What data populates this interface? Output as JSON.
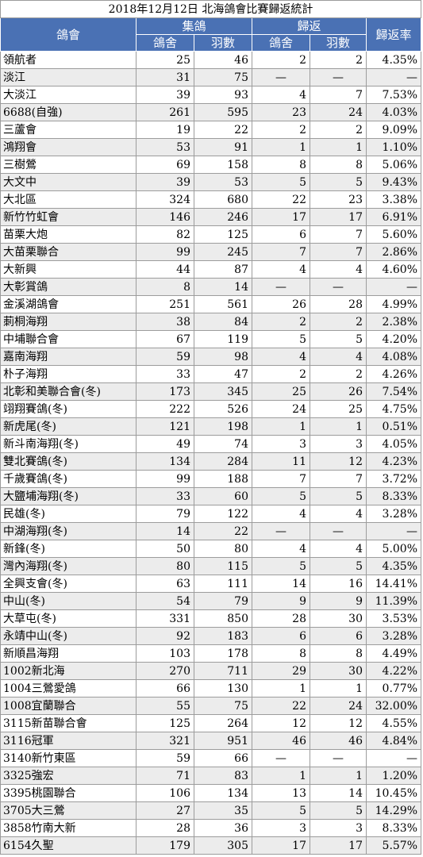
{
  "title": "2018年12月12日 北海鴿會比賽歸返統計",
  "headers": {
    "club": "鴿會",
    "collected": "集鴿",
    "returned": "歸返",
    "rate": "歸返率",
    "lofts": "鴿舍",
    "birds": "羽數"
  },
  "rows": [
    {
      "club": "領航者",
      "c_lofts": "25",
      "c_birds": "46",
      "r_lofts": "2",
      "r_birds": "2",
      "rate": "4.35%"
    },
    {
      "club": "淡江",
      "c_lofts": "31",
      "c_birds": "75",
      "r_lofts": "—",
      "r_birds": "—",
      "rate": "—"
    },
    {
      "club": "大淡江",
      "c_lofts": "39",
      "c_birds": "93",
      "r_lofts": "4",
      "r_birds": "7",
      "rate": "7.53%"
    },
    {
      "club": "6688(自強)",
      "c_lofts": "261",
      "c_birds": "595",
      "r_lofts": "23",
      "r_birds": "24",
      "rate": "4.03%"
    },
    {
      "club": "三蘆會",
      "c_lofts": "19",
      "c_birds": "22",
      "r_lofts": "2",
      "r_birds": "2",
      "rate": "9.09%"
    },
    {
      "club": "鴻翔會",
      "c_lofts": "53",
      "c_birds": "91",
      "r_lofts": "1",
      "r_birds": "1",
      "rate": "1.10%"
    },
    {
      "club": "三樹鶯",
      "c_lofts": "69",
      "c_birds": "158",
      "r_lofts": "8",
      "r_birds": "8",
      "rate": "5.06%"
    },
    {
      "club": "大文中",
      "c_lofts": "39",
      "c_birds": "53",
      "r_lofts": "5",
      "r_birds": "5",
      "rate": "9.43%"
    },
    {
      "club": "大北區",
      "c_lofts": "324",
      "c_birds": "680",
      "r_lofts": "22",
      "r_birds": "23",
      "rate": "3.38%"
    },
    {
      "club": "新竹竹虹會",
      "c_lofts": "146",
      "c_birds": "246",
      "r_lofts": "17",
      "r_birds": "17",
      "rate": "6.91%"
    },
    {
      "club": "苗栗大炮",
      "c_lofts": "82",
      "c_birds": "125",
      "r_lofts": "6",
      "r_birds": "7",
      "rate": "5.60%"
    },
    {
      "club": "大苗栗聯合",
      "c_lofts": "99",
      "c_birds": "245",
      "r_lofts": "7",
      "r_birds": "7",
      "rate": "2.86%"
    },
    {
      "club": "大新興",
      "c_lofts": "44",
      "c_birds": "87",
      "r_lofts": "4",
      "r_birds": "4",
      "rate": "4.60%"
    },
    {
      "club": "大彰賞鴿",
      "c_lofts": "8",
      "c_birds": "14",
      "r_lofts": "—",
      "r_birds": "—",
      "rate": "—"
    },
    {
      "club": "金溪湖鴿會",
      "c_lofts": "251",
      "c_birds": "561",
      "r_lofts": "26",
      "r_birds": "28",
      "rate": "4.99%"
    },
    {
      "club": "莿桐海翔",
      "c_lofts": "38",
      "c_birds": "84",
      "r_lofts": "2",
      "r_birds": "2",
      "rate": "2.38%"
    },
    {
      "club": "中埔聯合會",
      "c_lofts": "67",
      "c_birds": "119",
      "r_lofts": "5",
      "r_birds": "5",
      "rate": "4.20%"
    },
    {
      "club": "嘉南海翔",
      "c_lofts": "59",
      "c_birds": "98",
      "r_lofts": "4",
      "r_birds": "4",
      "rate": "4.08%"
    },
    {
      "club": "朴子海翔",
      "c_lofts": "33",
      "c_birds": "47",
      "r_lofts": "2",
      "r_birds": "2",
      "rate": "4.26%"
    },
    {
      "club": "北彰和美聯合會(冬)",
      "c_lofts": "173",
      "c_birds": "345",
      "r_lofts": "25",
      "r_birds": "26",
      "rate": "7.54%"
    },
    {
      "club": "翊翔賽鴿(冬)",
      "c_lofts": "222",
      "c_birds": "526",
      "r_lofts": "24",
      "r_birds": "25",
      "rate": "4.75%"
    },
    {
      "club": "新虎尾(冬)",
      "c_lofts": "121",
      "c_birds": "198",
      "r_lofts": "1",
      "r_birds": "1",
      "rate": "0.51%"
    },
    {
      "club": "新斗南海翔(冬)",
      "c_lofts": "49",
      "c_birds": "74",
      "r_lofts": "3",
      "r_birds": "3",
      "rate": "4.05%"
    },
    {
      "club": "雙北賽鴿(冬)",
      "c_lofts": "134",
      "c_birds": "284",
      "r_lofts": "11",
      "r_birds": "12",
      "rate": "4.23%"
    },
    {
      "club": "千歲賽鴿(冬)",
      "c_lofts": "99",
      "c_birds": "188",
      "r_lofts": "7",
      "r_birds": "7",
      "rate": "3.72%"
    },
    {
      "club": "大鹽埔海翔(冬)",
      "c_lofts": "33",
      "c_birds": "60",
      "r_lofts": "5",
      "r_birds": "5",
      "rate": "8.33%"
    },
    {
      "club": "民雄(冬)",
      "c_lofts": "79",
      "c_birds": "122",
      "r_lofts": "4",
      "r_birds": "4",
      "rate": "3.28%"
    },
    {
      "club": "中湖海翔(冬)",
      "c_lofts": "14",
      "c_birds": "22",
      "r_lofts": "—",
      "r_birds": "—",
      "rate": "—"
    },
    {
      "club": "新鋒(冬)",
      "c_lofts": "50",
      "c_birds": "80",
      "r_lofts": "4",
      "r_birds": "4",
      "rate": "5.00%"
    },
    {
      "club": "灣內海翔(冬)",
      "c_lofts": "80",
      "c_birds": "115",
      "r_lofts": "5",
      "r_birds": "5",
      "rate": "4.35%"
    },
    {
      "club": "全興支會(冬)",
      "c_lofts": "63",
      "c_birds": "111",
      "r_lofts": "14",
      "r_birds": "16",
      "rate": "14.41%"
    },
    {
      "club": "中山(冬)",
      "c_lofts": "54",
      "c_birds": "79",
      "r_lofts": "9",
      "r_birds": "9",
      "rate": "11.39%"
    },
    {
      "club": "大草屯(冬)",
      "c_lofts": "331",
      "c_birds": "850",
      "r_lofts": "28",
      "r_birds": "30",
      "rate": "3.53%"
    },
    {
      "club": "永靖中山(冬)",
      "c_lofts": "92",
      "c_birds": "183",
      "r_lofts": "6",
      "r_birds": "6",
      "rate": "3.28%"
    },
    {
      "club": "新順昌海翔",
      "c_lofts": "103",
      "c_birds": "178",
      "r_lofts": "8",
      "r_birds": "8",
      "rate": "4.49%"
    },
    {
      "club": "1002新北海",
      "c_lofts": "270",
      "c_birds": "711",
      "r_lofts": "29",
      "r_birds": "30",
      "rate": "4.22%"
    },
    {
      "club": "1004三鶯愛鴿",
      "c_lofts": "66",
      "c_birds": "130",
      "r_lofts": "1",
      "r_birds": "1",
      "rate": "0.77%"
    },
    {
      "club": "1008宜蘭聯合",
      "c_lofts": "55",
      "c_birds": "75",
      "r_lofts": "22",
      "r_birds": "24",
      "rate": "32.00%"
    },
    {
      "club": "3115新苗聯合會",
      "c_lofts": "125",
      "c_birds": "264",
      "r_lofts": "12",
      "r_birds": "12",
      "rate": "4.55%"
    },
    {
      "club": "3116冠軍",
      "c_lofts": "321",
      "c_birds": "951",
      "r_lofts": "46",
      "r_birds": "46",
      "rate": "4.84%"
    },
    {
      "club": "3140新竹東區",
      "c_lofts": "59",
      "c_birds": "66",
      "r_lofts": "—",
      "r_birds": "—",
      "rate": "—"
    },
    {
      "club": "3325強宏",
      "c_lofts": "71",
      "c_birds": "83",
      "r_lofts": "1",
      "r_birds": "1",
      "rate": "1.20%"
    },
    {
      "club": "3395桃園聯合",
      "c_lofts": "106",
      "c_birds": "134",
      "r_lofts": "13",
      "r_birds": "14",
      "rate": "10.45%"
    },
    {
      "club": "3705大三鶯",
      "c_lofts": "27",
      "c_birds": "35",
      "r_lofts": "5",
      "r_birds": "5",
      "rate": "14.29%"
    },
    {
      "club": "3858竹南大新",
      "c_lofts": "28",
      "c_birds": "36",
      "r_lofts": "3",
      "r_birds": "3",
      "rate": "8.33%"
    },
    {
      "club": "6154久聖",
      "c_lofts": "179",
      "c_birds": "305",
      "r_lofts": "17",
      "r_birds": "17",
      "rate": "5.57%"
    }
  ],
  "colors": {
    "header_bg": "#4a71b4",
    "header_text": "#ffffff",
    "stripe_bg": "#ececec",
    "grid_line": "#9c9c9c"
  }
}
